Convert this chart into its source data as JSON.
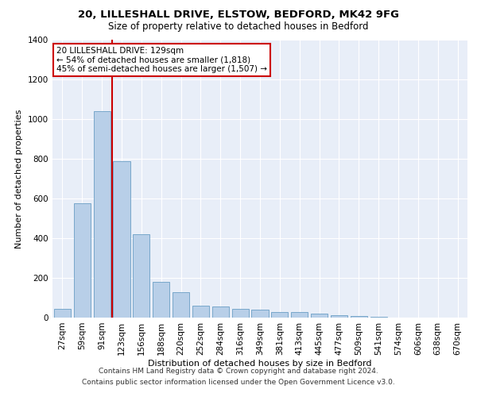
{
  "title_line1": "20, LILLESHALL DRIVE, ELSTOW, BEDFORD, MK42 9FG",
  "title_line2": "Size of property relative to detached houses in Bedford",
  "xlabel": "Distribution of detached houses by size in Bedford",
  "ylabel": "Number of detached properties",
  "footnote1": "Contains HM Land Registry data © Crown copyright and database right 2024.",
  "footnote2": "Contains public sector information licensed under the Open Government Licence v3.0.",
  "annotation_title": "20 LILLESHALL DRIVE: 129sqm",
  "annotation_line1": "← 54% of detached houses are smaller (1,818)",
  "annotation_line2": "45% of semi-detached houses are larger (1,507) →",
  "bar_labels": [
    "27sqm",
    "59sqm",
    "91sqm",
    "123sqm",
    "156sqm",
    "188sqm",
    "220sqm",
    "252sqm",
    "284sqm",
    "316sqm",
    "349sqm",
    "381sqm",
    "413sqm",
    "445sqm",
    "477sqm",
    "509sqm",
    "541sqm",
    "574sqm",
    "606sqm",
    "638sqm",
    "670sqm"
  ],
  "bar_values": [
    45,
    575,
    1040,
    790,
    420,
    180,
    130,
    60,
    58,
    46,
    42,
    28,
    27,
    20,
    14,
    8,
    3,
    2,
    1,
    0,
    0
  ],
  "bar_color": "#b8cfe8",
  "bar_edge_color": "#6a9ec5",
  "marker_bar_index": 3,
  "marker_color": "#cc0000",
  "ylim": [
    0,
    1400
  ],
  "yticks": [
    0,
    200,
    400,
    600,
    800,
    1000,
    1200,
    1400
  ],
  "background_color": "#e8eef8",
  "grid_color": "#ffffff",
  "annotation_box_color": "#ffffff",
  "annotation_box_edge": "#cc0000",
  "title_fontsize": 9.5,
  "subtitle_fontsize": 8.5,
  "ylabel_fontsize": 8,
  "xlabel_fontsize": 8,
  "tick_fontsize": 7.5,
  "footnote_fontsize": 6.5
}
